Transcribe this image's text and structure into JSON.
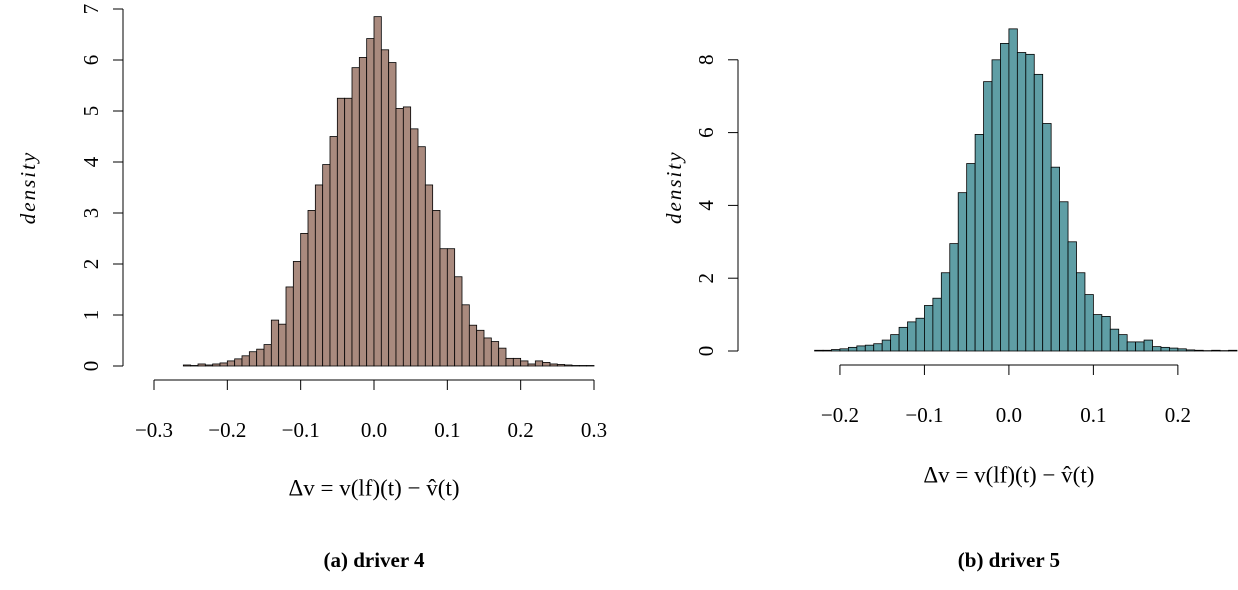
{
  "chart_data": [
    {
      "type": "histogram",
      "caption": "(a) driver 4",
      "xlabel": "Δv = v(lf)(t) − v̂(t)",
      "ylabel": "density",
      "color": "#a98a7e",
      "bins": [
        -0.26,
        -0.25,
        -0.24,
        -0.23,
        -0.22,
        -0.21,
        -0.2,
        -0.19,
        -0.18,
        -0.17,
        -0.16,
        -0.15,
        -0.14,
        -0.13,
        -0.12,
        -0.11,
        -0.1,
        -0.09,
        -0.08,
        -0.07,
        -0.06,
        -0.05,
        -0.04,
        -0.03,
        -0.02,
        -0.01,
        0,
        0.01,
        0.02,
        0.03,
        0.04,
        0.05,
        0.06,
        0.07,
        0.08,
        0.09,
        0.1,
        0.11,
        0.12,
        0.13,
        0.14,
        0.15,
        0.16,
        0.17,
        0.18,
        0.19,
        0.2,
        0.21,
        0.22,
        0.23,
        0.24,
        0.25,
        0.26,
        0.27,
        0.28,
        0.29,
        0.3
      ],
      "values": [
        0.02,
        0.01,
        0.04,
        0.02,
        0.04,
        0.06,
        0.1,
        0.14,
        0.2,
        0.28,
        0.33,
        0.42,
        0.9,
        0.82,
        1.55,
        2.05,
        2.6,
        3.05,
        3.55,
        3.95,
        4.5,
        5.25,
        5.25,
        5.85,
        6.05,
        6.42,
        6.85,
        6.2,
        5.95,
        5.05,
        5.08,
        4.65,
        4.3,
        3.55,
        3.05,
        2.3,
        2.3,
        1.75,
        1.2,
        0.8,
        0.7,
        0.55,
        0.48,
        0.35,
        0.15,
        0.15,
        0.1,
        0.04,
        0.1,
        0.07,
        0.04,
        0.03,
        0.02,
        0.01,
        0.01,
        0.01
      ],
      "xlim": [
        -0.3,
        0.3
      ],
      "ylim": [
        0,
        7
      ],
      "xticks": [
        {
          "value": -0.3,
          "label": "−0.3"
        },
        {
          "value": -0.2,
          "label": "−0.2"
        },
        {
          "value": -0.1,
          "label": "−0.1"
        },
        {
          "value": 0,
          "label": "0.0"
        },
        0.1,
        0.2,
        0.3
      ],
      "yticks": [
        0,
        1,
        2,
        3,
        4,
        5,
        6,
        7
      ]
    },
    {
      "type": "histogram",
      "caption": "(b) driver 5",
      "xlabel": "Δv = v(lf)(t) − v̂(t)",
      "ylabel": "density",
      "color": "#5f9ea5",
      "bins": [
        -0.23,
        -0.22,
        -0.21,
        -0.2,
        -0.19,
        -0.18,
        -0.17,
        -0.16,
        -0.15,
        -0.14,
        -0.13,
        -0.12,
        -0.11,
        -0.1,
        -0.09,
        -0.08,
        -0.07,
        -0.06,
        -0.05,
        -0.04,
        -0.03,
        -0.02,
        -0.01,
        0,
        0.01,
        0.02,
        0.03,
        0.04,
        0.05,
        0.06,
        0.07,
        0.08,
        0.09,
        0.1,
        0.11,
        0.12,
        0.13,
        0.14,
        0.15,
        0.16,
        0.17,
        0.18,
        0.19,
        0.2,
        0.21,
        0.22,
        0.23,
        0.24,
        0.25,
        0.26,
        0.27
      ],
      "values": [
        0.02,
        0.02,
        0.04,
        0.06,
        0.1,
        0.14,
        0.16,
        0.2,
        0.3,
        0.45,
        0.65,
        0.8,
        0.9,
        1.25,
        1.45,
        2.15,
        2.95,
        4.35,
        5.15,
        5.95,
        7.4,
        8.0,
        8.45,
        8.85,
        8.2,
        8.15,
        7.6,
        6.25,
        5.05,
        4.1,
        3.0,
        2.15,
        1.55,
        1.0,
        0.95,
        0.6,
        0.45,
        0.25,
        0.25,
        0.3,
        0.12,
        0.1,
        0.08,
        0.06,
        0.03,
        0.02,
        0.01,
        0.02,
        0.01,
        0.02
      ],
      "xlim": [
        -0.23,
        0.27
      ],
      "ylim": [
        0,
        9
      ],
      "xticks": [
        {
          "value": -0.2,
          "label": "−0.2"
        },
        {
          "value": -0.1,
          "label": "−0.1"
        },
        {
          "value": 0,
          "label": "0.0"
        },
        0.1,
        0.2
      ],
      "yticks": [
        0,
        2,
        4,
        6,
        8
      ]
    }
  ]
}
